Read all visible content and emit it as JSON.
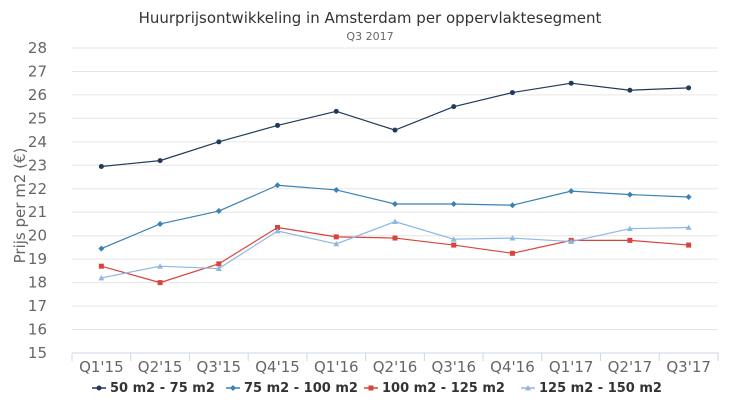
{
  "chart_data": {
    "type": "line",
    "title": "Huurprijsontwikkeling in Amsterdam per oppervlaktesegment",
    "subtitle": "Q3 2017",
    "xlabel": "",
    "ylabel": "Prijs per m2 (€)",
    "ylim": [
      15,
      28
    ],
    "ytick_step": 1,
    "grid": true,
    "legend_position": "bottom",
    "categories": [
      "Q1'15",
      "Q2'15",
      "Q3'15",
      "Q4'15",
      "Q1'16",
      "Q2'16",
      "Q3'16",
      "Q4'16",
      "Q1'17",
      "Q2'17",
      "Q3'17"
    ],
    "series": [
      {
        "name": "50 m2 - 75 m2",
        "color": "#1f3a5a",
        "marker": "circle",
        "values": [
          22.95,
          23.2,
          24.0,
          24.7,
          25.3,
          24.5,
          25.5,
          26.1,
          26.5,
          26.2,
          26.3
        ]
      },
      {
        "name": "75 m2 - 100 m2",
        "color": "#3a82b6",
        "marker": "diamond",
        "values": [
          19.45,
          20.5,
          21.05,
          22.15,
          21.95,
          21.35,
          21.35,
          21.3,
          21.9,
          21.75,
          21.65
        ]
      },
      {
        "name": "100 m2 - 125 m2",
        "color": "#d9443a",
        "marker": "square",
        "values": [
          18.7,
          18.0,
          18.8,
          20.35,
          19.95,
          19.9,
          19.6,
          19.25,
          19.8,
          19.8,
          19.6
        ]
      },
      {
        "name": "125 m2 - 150 m2",
        "color": "#8cb8e2",
        "marker": "triangle",
        "values": [
          18.2,
          18.7,
          18.6,
          20.2,
          19.65,
          20.6,
          19.85,
          19.9,
          19.75,
          20.3,
          20.35
        ]
      }
    ]
  }
}
